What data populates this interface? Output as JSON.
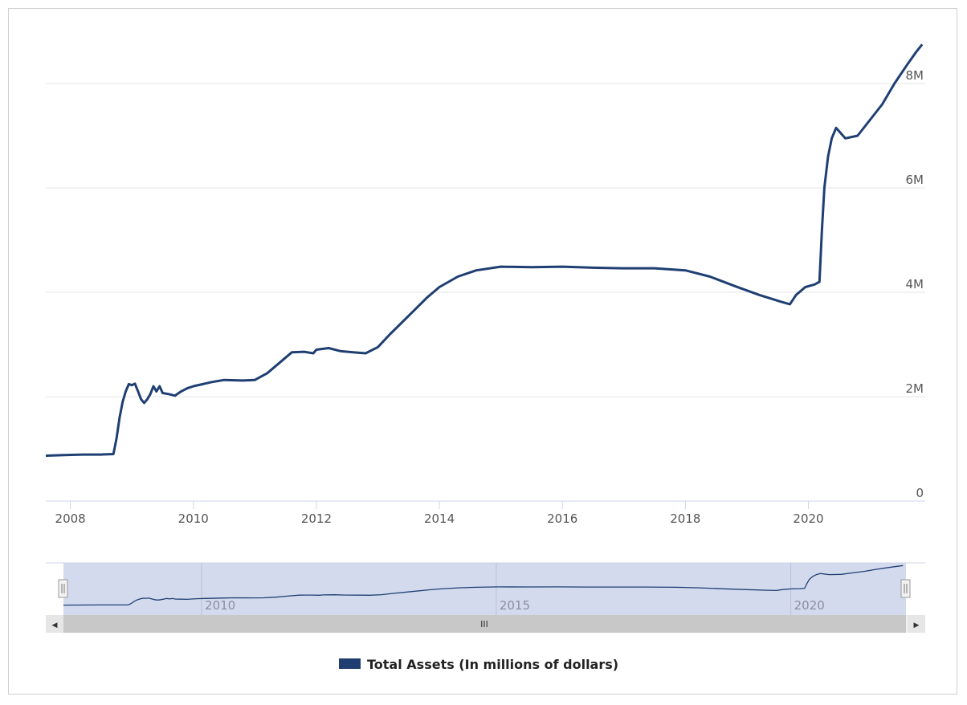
{
  "chart_data": {
    "type": "line",
    "title": "",
    "xlabel": "",
    "ylabel": "",
    "xlim": [
      2007.6,
      2021.9
    ],
    "ylim": [
      0,
      8.8
    ],
    "y_ticks": [
      {
        "value": 0,
        "label": "0"
      },
      {
        "value": 2,
        "label": "2M"
      },
      {
        "value": 4,
        "label": "4M"
      },
      {
        "value": 6,
        "label": "6M"
      },
      {
        "value": 8,
        "label": "8M"
      }
    ],
    "x_ticks": [
      {
        "value": 2008,
        "label": "2008"
      },
      {
        "value": 2010,
        "label": "2010"
      },
      {
        "value": 2012,
        "label": "2012"
      },
      {
        "value": 2014,
        "label": "2014"
      },
      {
        "value": 2016,
        "label": "2016"
      },
      {
        "value": 2018,
        "label": "2018"
      },
      {
        "value": 2020,
        "label": "2020"
      }
    ],
    "navigator_ticks": [
      {
        "value": 2010,
        "label": "2010"
      },
      {
        "value": 2015,
        "label": "2015"
      },
      {
        "value": 2020,
        "label": "2020"
      }
    ],
    "series": [
      {
        "name": "Total Assets (In millions of dollars)",
        "color": "#1f3f73",
        "points": [
          [
            2007.6,
            0.87
          ],
          [
            2007.9,
            0.88
          ],
          [
            2008.2,
            0.89
          ],
          [
            2008.5,
            0.89
          ],
          [
            2008.7,
            0.9
          ],
          [
            2008.75,
            1.2
          ],
          [
            2008.8,
            1.6
          ],
          [
            2008.85,
            1.9
          ],
          [
            2008.9,
            2.1
          ],
          [
            2008.95,
            2.24
          ],
          [
            2009.0,
            2.22
          ],
          [
            2009.05,
            2.25
          ],
          [
            2009.1,
            2.1
          ],
          [
            2009.15,
            1.95
          ],
          [
            2009.2,
            1.88
          ],
          [
            2009.25,
            1.95
          ],
          [
            2009.3,
            2.05
          ],
          [
            2009.35,
            2.2
          ],
          [
            2009.4,
            2.1
          ],
          [
            2009.45,
            2.2
          ],
          [
            2009.5,
            2.07
          ],
          [
            2009.6,
            2.05
          ],
          [
            2009.7,
            2.02
          ],
          [
            2009.8,
            2.1
          ],
          [
            2009.9,
            2.16
          ],
          [
            2010.0,
            2.2
          ],
          [
            2010.3,
            2.28
          ],
          [
            2010.5,
            2.32
          ],
          [
            2010.8,
            2.31
          ],
          [
            2011.0,
            2.32
          ],
          [
            2011.2,
            2.45
          ],
          [
            2011.4,
            2.65
          ],
          [
            2011.6,
            2.85
          ],
          [
            2011.8,
            2.86
          ],
          [
            2011.95,
            2.83
          ],
          [
            2012.0,
            2.9
          ],
          [
            2012.2,
            2.93
          ],
          [
            2012.4,
            2.87
          ],
          [
            2012.6,
            2.85
          ],
          [
            2012.8,
            2.83
          ],
          [
            2013.0,
            2.95
          ],
          [
            2013.2,
            3.2
          ],
          [
            2013.5,
            3.55
          ],
          [
            2013.8,
            3.9
          ],
          [
            2014.0,
            4.1
          ],
          [
            2014.3,
            4.3
          ],
          [
            2014.6,
            4.42
          ],
          [
            2015.0,
            4.49
          ],
          [
            2015.5,
            4.48
          ],
          [
            2016.0,
            4.49
          ],
          [
            2016.5,
            4.47
          ],
          [
            2017.0,
            4.46
          ],
          [
            2017.5,
            4.46
          ],
          [
            2018.0,
            4.42
          ],
          [
            2018.4,
            4.3
          ],
          [
            2018.8,
            4.12
          ],
          [
            2019.2,
            3.95
          ],
          [
            2019.55,
            3.82
          ],
          [
            2019.7,
            3.77
          ],
          [
            2019.8,
            3.95
          ],
          [
            2019.95,
            4.1
          ],
          [
            2020.1,
            4.15
          ],
          [
            2020.18,
            4.2
          ],
          [
            2020.22,
            5.2
          ],
          [
            2020.26,
            6.0
          ],
          [
            2020.32,
            6.6
          ],
          [
            2020.38,
            6.95
          ],
          [
            2020.45,
            7.15
          ],
          [
            2020.6,
            6.95
          ],
          [
            2020.8,
            7.0
          ],
          [
            2021.0,
            7.3
          ],
          [
            2021.2,
            7.6
          ],
          [
            2021.4,
            8.0
          ],
          [
            2021.6,
            8.35
          ],
          [
            2021.75,
            8.6
          ],
          [
            2021.85,
            8.75
          ]
        ]
      }
    ],
    "legend": "bottom-center"
  },
  "ui": {
    "scrollbar_grip": "III",
    "scroll_left_arrow": "◀",
    "scroll_right_arrow": "▶",
    "handle_grip": "II"
  }
}
